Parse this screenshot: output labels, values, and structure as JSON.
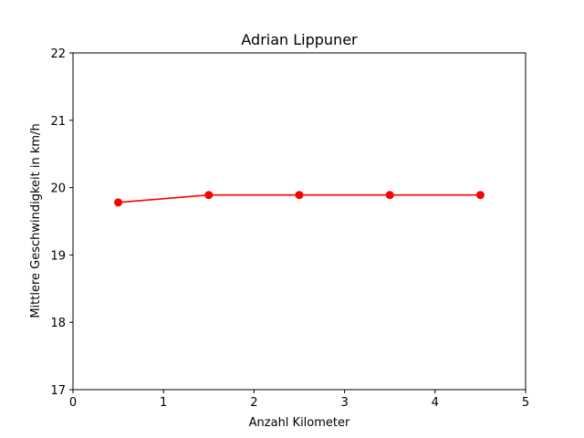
{
  "chart_data": {
    "type": "line",
    "title": "Adrian Lippuner",
    "xlabel": "Anzahl Kilometer",
    "ylabel": "Mittlere Geschwindigkeit in km/h",
    "x": [
      0.5,
      1.5,
      2.5,
      3.5,
      4.5
    ],
    "series": [
      {
        "values": [
          19.78,
          19.89,
          19.89,
          19.89,
          19.89
        ],
        "color": "#ff0000",
        "marker": "circle"
      }
    ],
    "xlim": [
      0,
      5
    ],
    "ylim": [
      17,
      22
    ],
    "xticks": [
      "0",
      "1",
      "2",
      "3",
      "4",
      "5"
    ],
    "yticks": [
      "17",
      "18",
      "19",
      "20",
      "21",
      "22"
    ],
    "grid": false,
    "legend": false
  }
}
